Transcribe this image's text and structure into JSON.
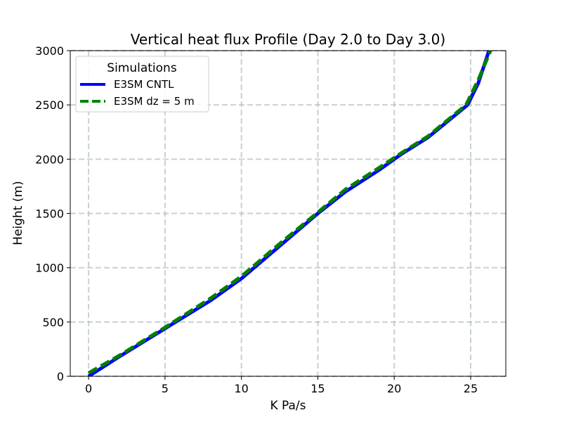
{
  "chart_data": {
    "type": "line",
    "title": "Vertical heat flux Profile (Day 2.0 to Day 3.0)",
    "xlabel": "K Pa/s",
    "ylabel": "Height (m)",
    "xlim": [
      -1.2,
      27.3
    ],
    "ylim": [
      0,
      3000
    ],
    "xticks": [
      0,
      5,
      10,
      15,
      20,
      25
    ],
    "yticks": [
      0,
      500,
      1000,
      1500,
      2000,
      2500,
      3000
    ],
    "grid": true,
    "legend": {
      "title": "Simulations",
      "placement": "top-left"
    },
    "series": [
      {
        "name": "E3SM CNTL",
        "color": "#0000ff",
        "style": "solid",
        "points": [
          [
            0,
            0
          ],
          [
            2,
            180
          ],
          [
            5,
            440
          ],
          [
            8,
            700
          ],
          [
            10,
            900
          ],
          [
            12.5,
            1200
          ],
          [
            15,
            1500
          ],
          [
            16.8,
            1700
          ],
          [
            19,
            1900
          ],
          [
            20.5,
            2050
          ],
          [
            22.2,
            2200
          ],
          [
            24.8,
            2500
          ],
          [
            25.5,
            2700
          ],
          [
            26.2,
            3000
          ]
        ]
      },
      {
        "name": "E3SM dz = 5 m",
        "color": "#008000",
        "style": "dashed",
        "points": [
          [
            0,
            30
          ],
          [
            2,
            190
          ],
          [
            5,
            450
          ],
          [
            8,
            720
          ],
          [
            10,
            920
          ],
          [
            12.5,
            1220
          ],
          [
            15,
            1510
          ],
          [
            16.8,
            1720
          ],
          [
            19,
            1920
          ],
          [
            20.5,
            2060
          ],
          [
            22.2,
            2210
          ],
          [
            24.7,
            2500
          ],
          [
            25.5,
            2730
          ],
          [
            26.3,
            3000
          ]
        ]
      }
    ]
  }
}
